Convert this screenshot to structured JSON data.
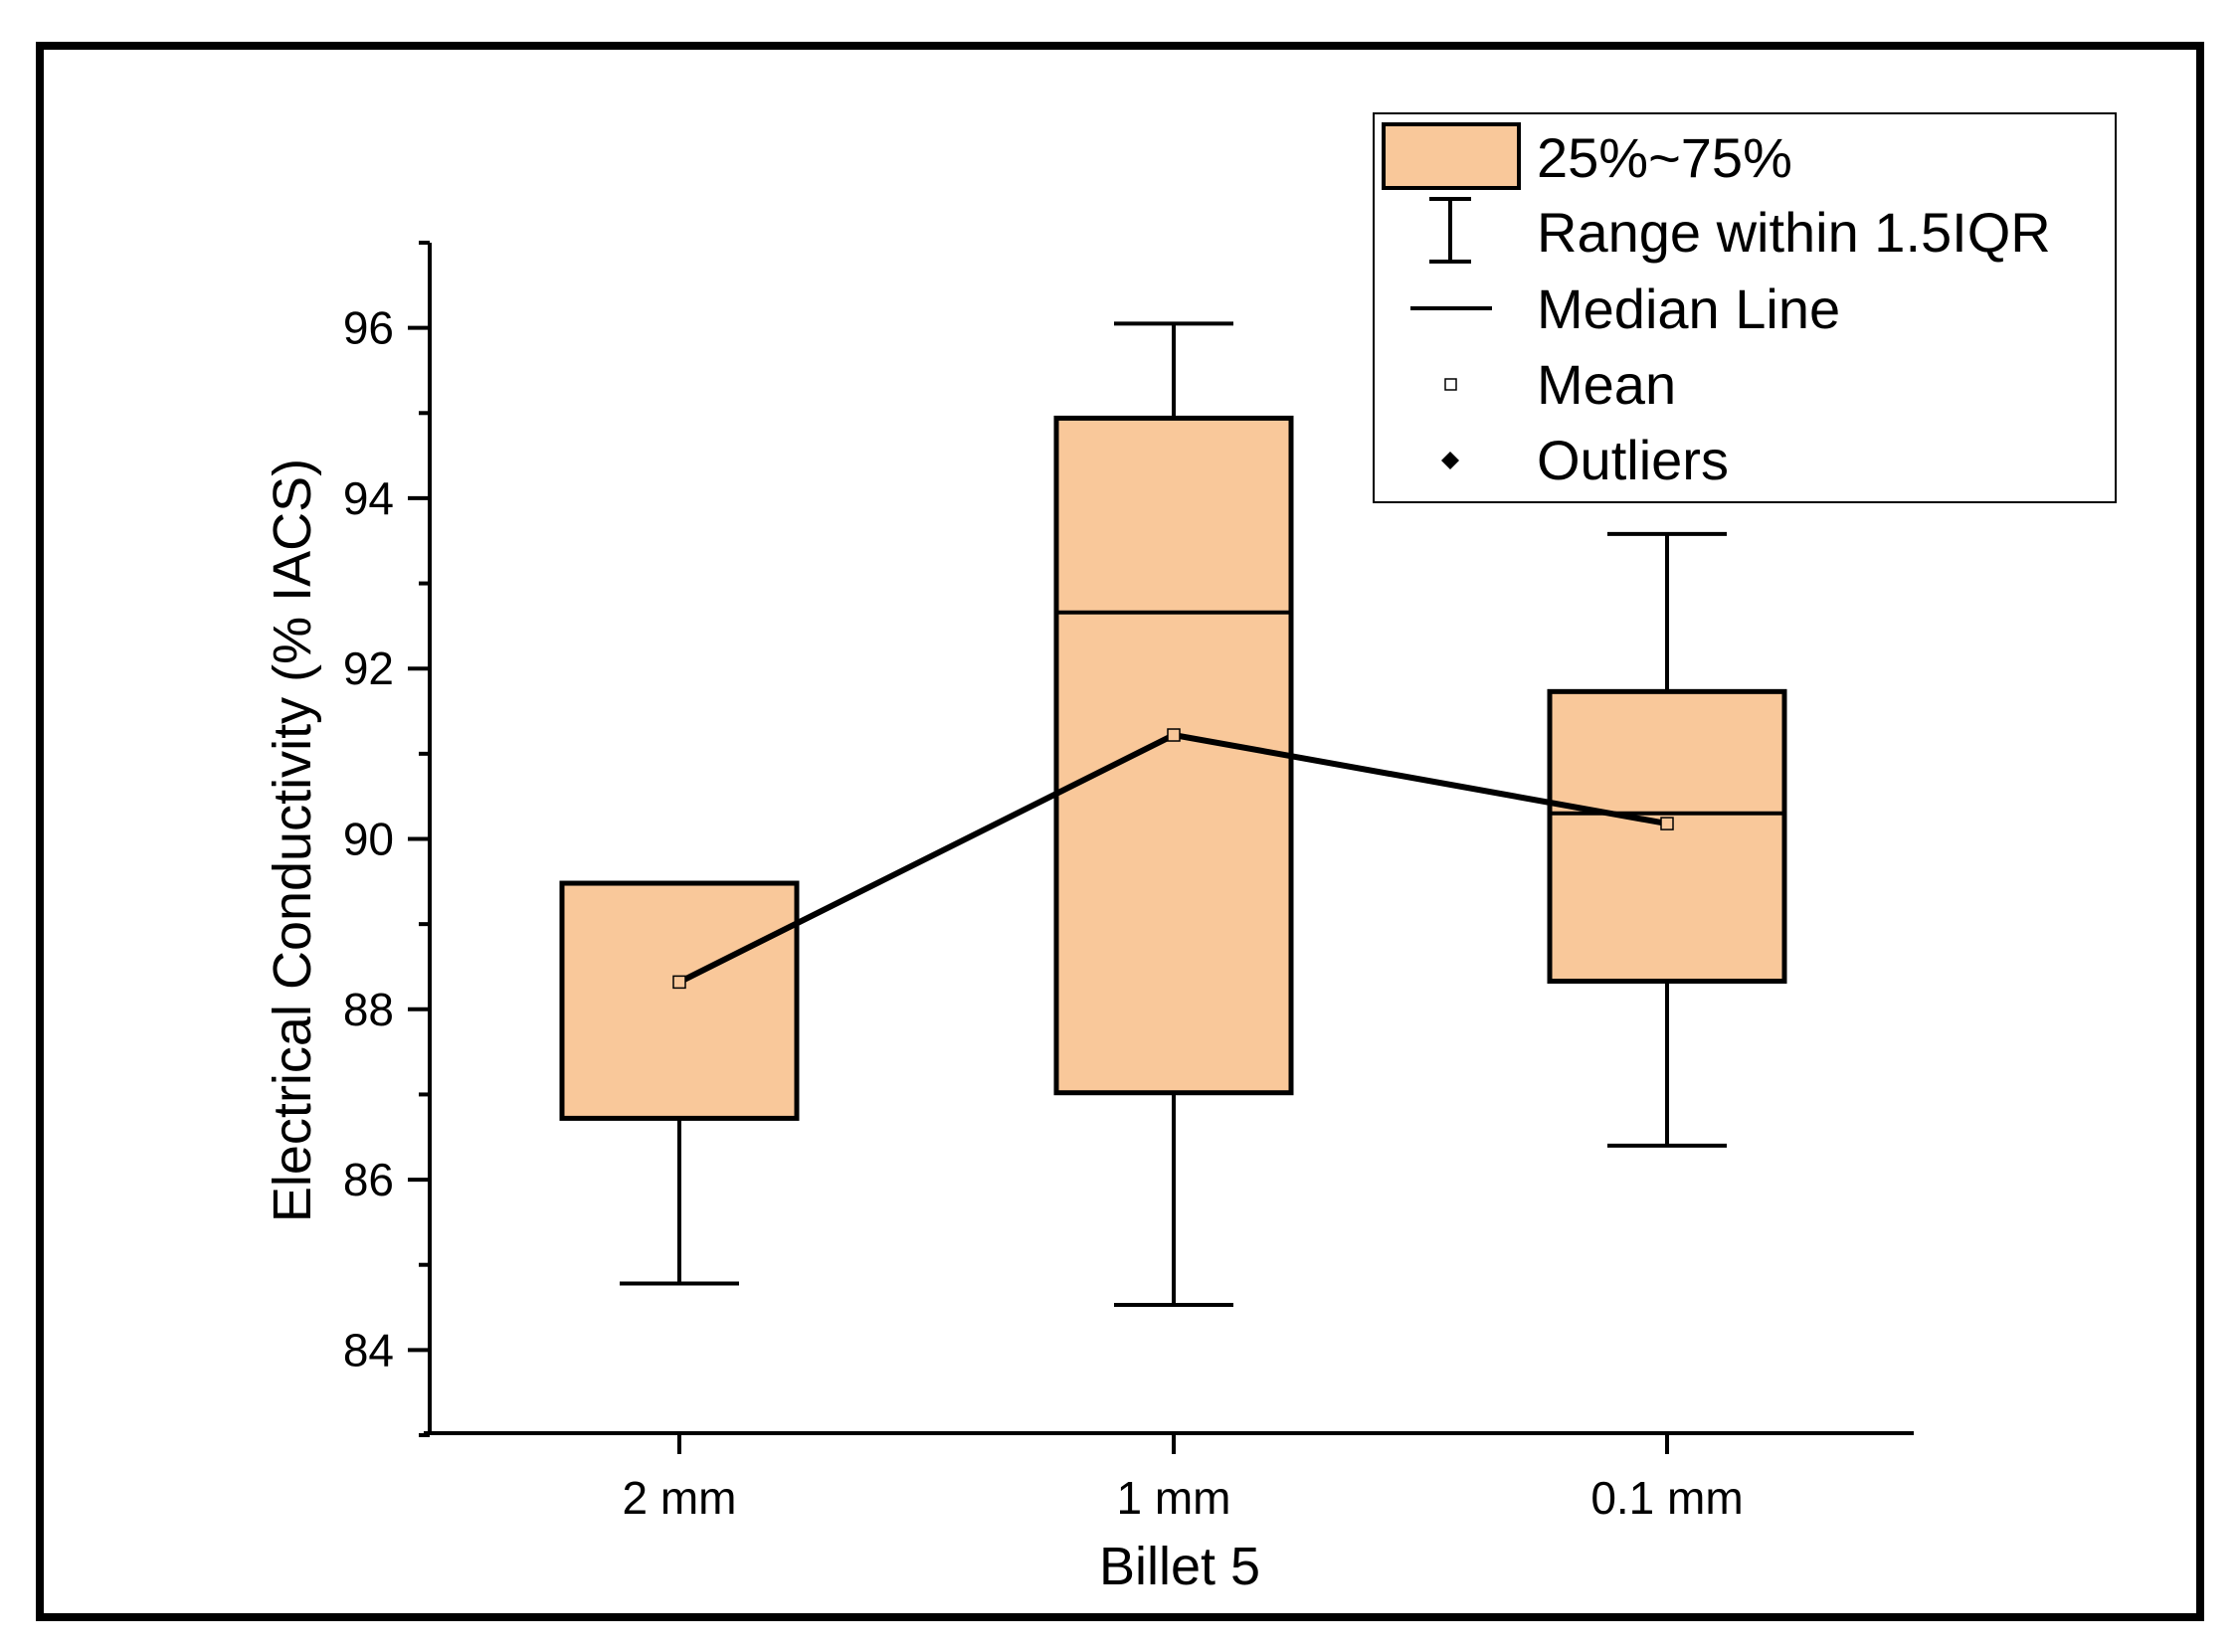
{
  "colors": {
    "box_fill": "#f9c89a",
    "stroke": "#000000",
    "background": "#ffffff"
  },
  "chart_data": {
    "type": "box",
    "title": "",
    "xlabel": "Billet 5",
    "ylabel": "Electrical Conductivity (% IACS)",
    "ylim": [
      83,
      97
    ],
    "yticks": [
      84,
      86,
      88,
      90,
      92,
      94,
      96
    ],
    "categories": [
      "2 mm",
      "1 mm",
      "0.1 mm"
    ],
    "boxes": [
      {
        "category": "2 mm",
        "whisker_low": 84.78,
        "q1": 86.72,
        "median": 89.48,
        "q3": 89.48,
        "whisker_high": 89.48,
        "mean": 88.32
      },
      {
        "category": "1 mm",
        "whisker_low": 84.53,
        "q1": 87.02,
        "median": 92.66,
        "q3": 94.94,
        "whisker_high": 96.05,
        "mean": 91.22
      },
      {
        "category": "0.1 mm",
        "whisker_low": 86.4,
        "q1": 88.33,
        "median": 90.3,
        "q3": 91.73,
        "whisker_high": 93.58,
        "mean": 90.18
      }
    ],
    "mean_line": {
      "categories": [
        "2 mm",
        "1 mm",
        "0.1 mm"
      ],
      "values": [
        88.32,
        91.22,
        90.18
      ]
    },
    "legend": {
      "position": "top-right",
      "entries": [
        "25%~75%",
        "Range within 1.5IQR",
        "Median Line",
        "Mean",
        "Outliers"
      ]
    }
  }
}
